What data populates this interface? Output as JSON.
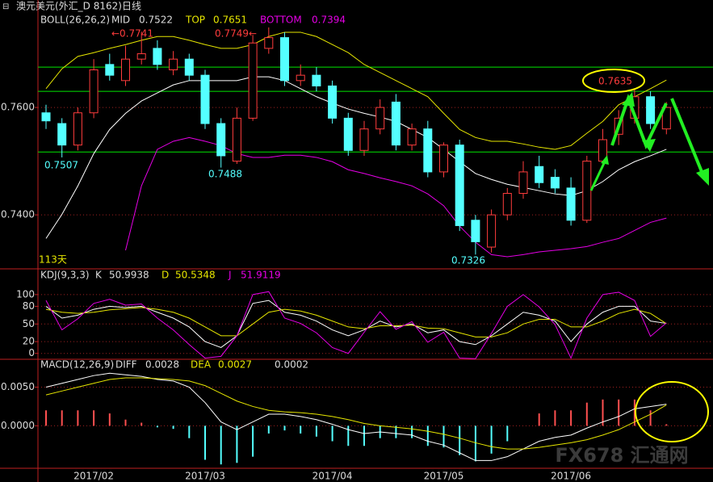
{
  "header": {
    "title": "澳元美元(外汇_D 8162)日线"
  },
  "watermark": "FX678 汇通网",
  "chart_data": [
    {
      "type": "candlestick",
      "legend_title": "BOLL(26,26,2)",
      "categories": [
        null,
        null,
        null,
        "2017/02",
        null,
        null,
        null,
        null,
        null,
        null,
        "2017/03",
        null,
        null,
        null,
        null,
        null,
        null,
        null,
        "2017/04",
        null,
        null,
        null,
        null,
        null,
        null,
        "2017/05",
        null,
        null,
        null,
        null,
        null,
        null,
        null,
        "2017/06",
        null,
        null,
        null,
        null,
        null,
        null
      ],
      "open": [
        0.759,
        0.757,
        0.753,
        0.759,
        0.768,
        0.765,
        0.769,
        0.771,
        0.767,
        0.769,
        0.766,
        0.757,
        0.75,
        0.758,
        0.771,
        0.773,
        0.765,
        0.766,
        0.764,
        0.758,
        0.752,
        0.756,
        0.761,
        0.753,
        0.756,
        0.748,
        0.753,
        0.739,
        0.734,
        0.74,
        0.744,
        0.749,
        0.747,
        0.745,
        0.739,
        0.75,
        0.755,
        0.758,
        0.762,
        0.756
      ],
      "high": [
        0.7605,
        0.758,
        0.76,
        0.769,
        0.77,
        0.7715,
        0.7741,
        0.7725,
        0.7705,
        0.77,
        0.767,
        0.758,
        0.76,
        0.7735,
        0.7749,
        0.774,
        0.768,
        0.7675,
        0.765,
        0.759,
        0.7575,
        0.7615,
        0.7625,
        0.757,
        0.7575,
        0.7535,
        0.754,
        0.74,
        0.741,
        0.745,
        0.75,
        0.751,
        0.7485,
        0.747,
        0.751,
        0.756,
        0.7595,
        0.7635,
        0.763,
        0.761
      ],
      "low": [
        0.756,
        0.7507,
        0.752,
        0.758,
        0.765,
        0.764,
        0.768,
        0.767,
        0.766,
        0.765,
        0.756,
        0.7488,
        0.7495,
        0.7575,
        0.77,
        0.764,
        0.764,
        0.763,
        0.757,
        0.751,
        0.751,
        0.755,
        0.752,
        0.752,
        0.747,
        0.747,
        0.737,
        0.7326,
        0.733,
        0.739,
        0.743,
        0.745,
        0.744,
        0.738,
        0.7385,
        0.749,
        0.753,
        0.757,
        0.756,
        0.755
      ],
      "close": [
        0.7575,
        0.753,
        0.759,
        0.767,
        0.766,
        0.769,
        0.77,
        0.768,
        0.769,
        0.766,
        0.757,
        0.751,
        0.758,
        0.772,
        0.773,
        0.765,
        0.766,
        0.764,
        0.758,
        0.752,
        0.756,
        0.76,
        0.753,
        0.756,
        0.748,
        0.753,
        0.738,
        0.735,
        0.74,
        0.744,
        0.748,
        0.746,
        0.745,
        0.739,
        0.75,
        0.754,
        0.758,
        0.762,
        0.757,
        0.76
      ],
      "series": [
        {
          "name": "MID",
          "color": "#ffffff",
          "values": [
            0.7356,
            0.7401,
            0.7454,
            0.7514,
            0.7559,
            0.7589,
            0.7612,
            0.7627,
            0.7642,
            0.765,
            0.765,
            0.765,
            0.765,
            0.7657,
            0.7657,
            0.765,
            0.7635,
            0.762,
            0.7608,
            0.7597,
            0.7589,
            0.7582,
            0.7574,
            0.7559,
            0.7544,
            0.7522,
            0.7499,
            0.7477,
            0.7466,
            0.7457,
            0.7451,
            0.7445,
            0.7439,
            0.7436,
            0.7445,
            0.7462,
            0.7484,
            0.7499,
            0.751,
            0.7522
          ]
        },
        {
          "name": "TOP",
          "color": "#e6e600",
          "values": [
            0.7635,
            0.7672,
            0.7695,
            0.7702,
            0.771,
            0.7717,
            0.7725,
            0.7732,
            0.7732,
            0.7725,
            0.7717,
            0.771,
            0.771,
            0.7717,
            0.7732,
            0.774,
            0.774,
            0.7732,
            0.7717,
            0.7702,
            0.768,
            0.7665,
            0.765,
            0.7635,
            0.762,
            0.7589,
            0.7559,
            0.7544,
            0.7537,
            0.7537,
            0.7532,
            0.7526,
            0.7522,
            0.7529,
            0.7552,
            0.7574,
            0.7605,
            0.762,
            0.7635,
            0.7651
          ]
        },
        {
          "name": "BOTTOM",
          "color": "#e600e6",
          "values": [
            null,
            null,
            null,
            null,
            null,
            0.7334,
            0.7454,
            0.7522,
            0.7537,
            0.7544,
            0.7537,
            0.7529,
            0.7514,
            0.7507,
            0.7507,
            0.7511,
            0.7511,
            0.7507,
            0.7499,
            0.7484,
            0.7477,
            0.7469,
            0.7462,
            0.7454,
            0.7439,
            0.7417,
            0.7379,
            0.7349,
            0.7326,
            0.7322,
            0.7326,
            0.7331,
            0.7334,
            0.7337,
            0.7341,
            0.7349,
            0.7356,
            0.7371,
            0.7386,
            0.7394
          ]
        }
      ],
      "up_color": "#ff3c3c",
      "down_color": "#54ffff",
      "ylim": [
        0.7304,
        0.7785
      ],
      "yticks": [
        {
          "value": 0.76,
          "label": "0.7600"
        },
        {
          "value": 0.74,
          "label": "0.7400"
        }
      ],
      "hlines": [
        0.7675,
        0.763,
        0.7517
      ],
      "hline_color": "#00e600",
      "annotations": [
        "←0.7741",
        "0.7749←",
        "0.7507",
        "0.7488",
        "0.7326",
        "0.7635",
        "113天"
      ]
    },
    {
      "type": "line",
      "legend_title": "KDJ(9,3,3)",
      "series": [
        {
          "name": "K",
          "color": "#ffffff",
          "values": [
            80,
            60,
            65,
            75,
            80,
            78,
            80,
            70,
            60,
            45,
            20,
            10,
            30,
            85,
            90,
            70,
            65,
            55,
            40,
            30,
            40,
            55,
            45,
            50,
            35,
            40,
            20,
            15,
            30,
            50,
            70,
            65,
            55,
            20,
            50,
            70,
            80,
            80,
            55,
            50.9938
          ]
        },
        {
          "name": "D",
          "color": "#e6e600",
          "values": [
            75,
            70,
            68,
            70,
            74,
            76,
            78,
            75,
            70,
            60,
            45,
            30,
            30,
            50,
            70,
            75,
            72,
            65,
            55,
            45,
            42,
            47,
            47,
            48,
            43,
            42,
            35,
            28,
            28,
            35,
            50,
            58,
            58,
            45,
            45,
            55,
            68,
            75,
            68,
            50.5348
          ]
        },
        {
          "name": "J",
          "color": "#e600e6",
          "values": [
            90,
            40,
            59,
            85,
            92,
            82,
            84,
            60,
            40,
            15,
            -8,
            -5,
            30,
            100,
            105,
            60,
            51,
            35,
            10,
            0,
            36,
            71,
            41,
            54,
            19,
            36,
            -8,
            -9,
            34,
            80,
            100,
            79,
            49,
            -8,
            60,
            100,
            104,
            90,
            29,
            51.9119
          ]
        }
      ],
      "ylim": [
        -10,
        141
      ],
      "yticks": [
        100,
        80,
        50,
        20,
        0
      ]
    },
    {
      "type": "bar",
      "legend_title": "MACD(12,26,9)",
      "values": [
        0.002,
        0.002,
        0.002,
        0.002,
        0.0016,
        0.0008,
        0.0004,
        -0.0002,
        -0.0004,
        -0.0016,
        -0.0044,
        -0.005,
        -0.0048,
        -0.004,
        -0.001,
        -0.0006,
        -0.001,
        -0.0014,
        -0.002,
        -0.0026,
        -0.0026,
        -0.0016,
        -0.0016,
        -0.0016,
        -0.0026,
        -0.0028,
        -0.0038,
        -0.0046,
        -0.0036,
        -0.002,
        0,
        0.0016,
        0.002,
        0.002,
        0.003,
        0.0034,
        0.0034,
        0.0034,
        0.002,
        0.0002
      ],
      "up_color": "#ff5050",
      "down_color": "#54ffff",
      "series": [
        {
          "name": "DIFF",
          "color": "#ffffff",
          "values": [
            0.005,
            0.0055,
            0.006,
            0.0065,
            0.0068,
            0.0066,
            0.0064,
            0.006,
            0.0058,
            0.005,
            0.003,
            0.0005,
            -0.0005,
            0.0005,
            0.0015,
            0.0015,
            0.0012,
            0.0008,
            0.0002,
            -0.0005,
            -0.001,
            -0.0008,
            -0.001,
            -0.0012,
            -0.002,
            -0.0025,
            -0.0035,
            -0.0045,
            -0.0045,
            -0.004,
            -0.003,
            -0.002,
            -0.0015,
            -0.0012,
            -0.0003,
            0.0005,
            0.0012,
            0.0022,
            0.0025,
            0.0028
          ]
        },
        {
          "name": "DEA",
          "color": "#e6e600",
          "values": [
            0.004,
            0.0045,
            0.005,
            0.0055,
            0.006,
            0.0062,
            0.0062,
            0.0061,
            0.006,
            0.0058,
            0.0052,
            0.0042,
            0.0032,
            0.0025,
            0.002,
            0.0018,
            0.0017,
            0.0015,
            0.0012,
            0.0008,
            0.0003,
            0,
            -0.0002,
            -0.0004,
            -0.0007,
            -0.0011,
            -0.0016,
            -0.0022,
            -0.0027,
            -0.003,
            -0.003,
            -0.0028,
            -0.0025,
            -0.0022,
            -0.0018,
            -0.0012,
            -0.0005,
            0.0005,
            0.0015,
            0.0027
          ]
        }
      ],
      "ylim": [
        -0.0055,
        0.0084
      ],
      "yticks": [
        {
          "value": 0.005,
          "label": "0.0050"
        },
        {
          "value": 0,
          "label": "0.0000"
        }
      ]
    }
  ]
}
